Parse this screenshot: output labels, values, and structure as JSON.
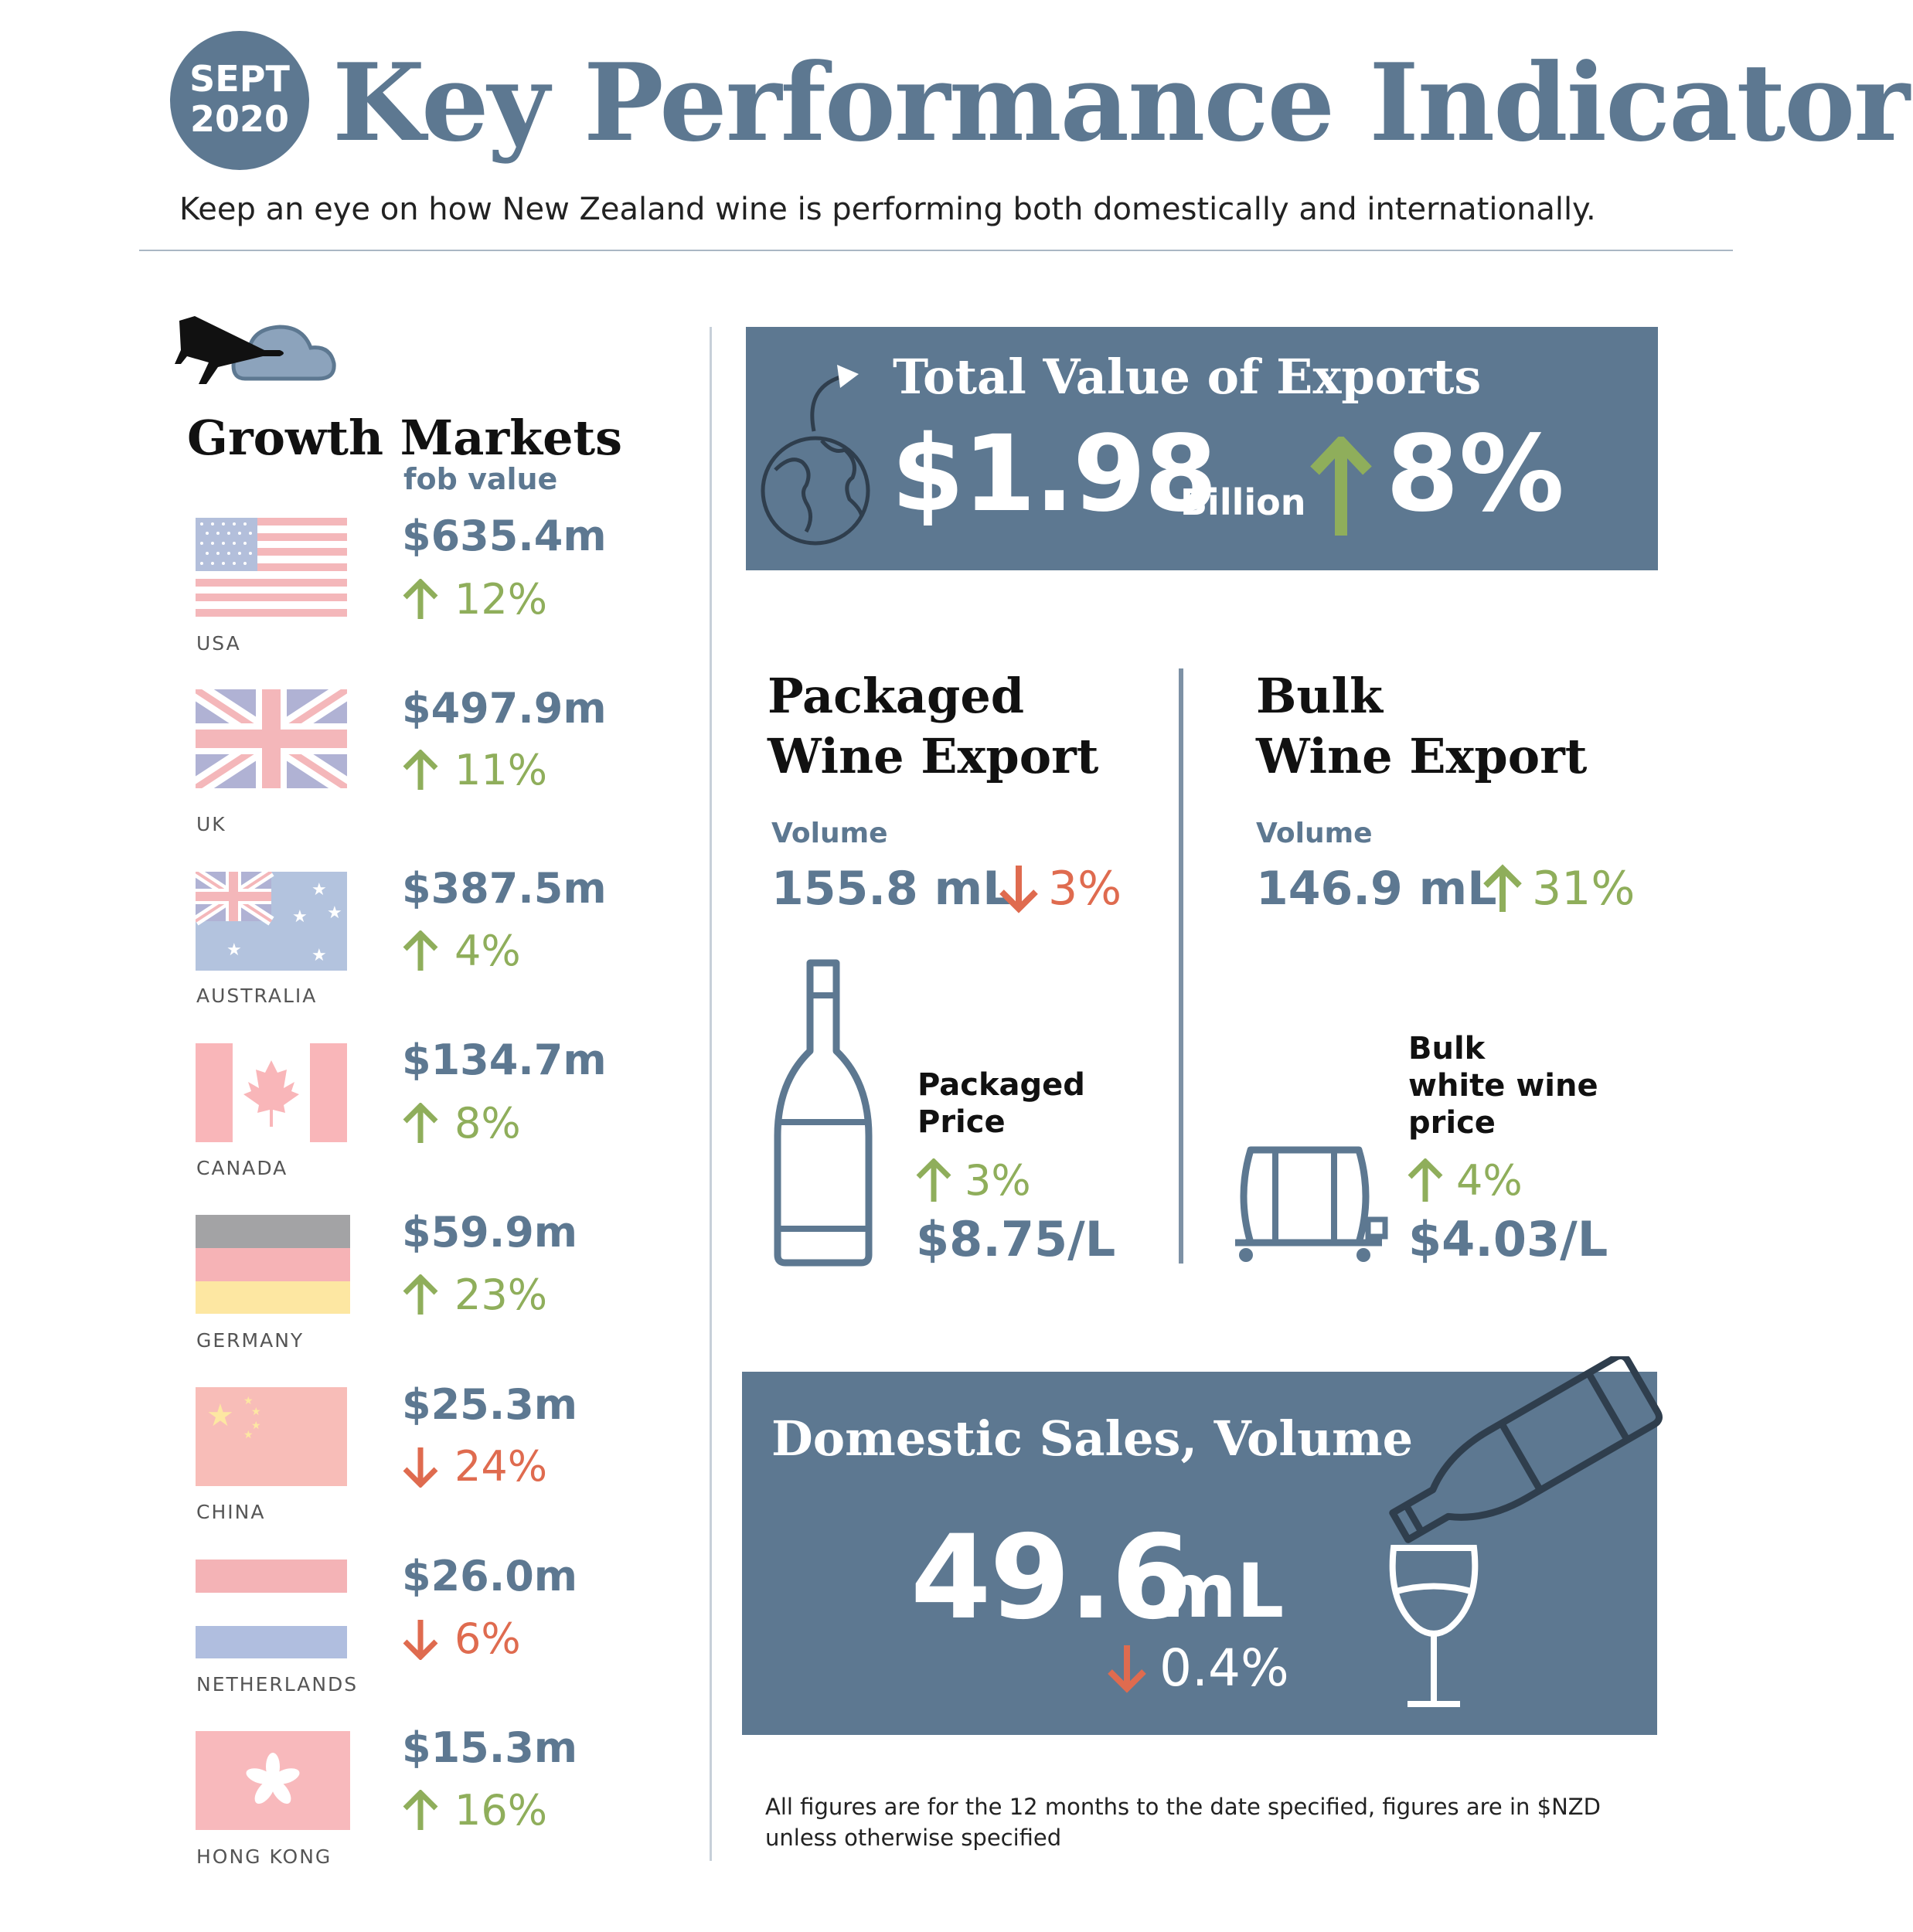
{
  "header": {
    "date_line1": "SEPT",
    "date_line2": "2020",
    "title": "Key Performance Indicators",
    "subtitle": "Keep an eye on how New Zealand wine is performing both domestically and internationally."
  },
  "growth_markets": {
    "title": "Growth Markets",
    "subtitle": "fob value",
    "markets": [
      {
        "country": "USA",
        "value": "$635.4m",
        "change": "12%",
        "direction": "up"
      },
      {
        "country": "UK",
        "value": "$497.9m",
        "change": "11%",
        "direction": "up"
      },
      {
        "country": "AUSTRALIA",
        "value": "$387.5m",
        "change": "4%",
        "direction": "up"
      },
      {
        "country": "CANADA",
        "value": "$134.7m",
        "change": "8%",
        "direction": "up"
      },
      {
        "country": "GERMANY",
        "value": "$59.9m",
        "change": "23%",
        "direction": "up"
      },
      {
        "country": "CHINA",
        "value": "$25.3m",
        "change": "24%",
        "direction": "down"
      },
      {
        "country": "NETHERLANDS",
        "value": "$26.0m",
        "change": "6%",
        "direction": "down"
      },
      {
        "country": "HONG KONG",
        "value": "$15.3m",
        "change": "16%",
        "direction": "up"
      }
    ]
  },
  "total_exports": {
    "title": "Total Value of Exports",
    "value": "$1.98",
    "unit": "Billion",
    "change": "8%",
    "direction": "up"
  },
  "packaged": {
    "title_line1": "Packaged",
    "title_line2": "Wine Export",
    "volume_label": "Volume",
    "volume": "155.8 mL",
    "volume_change": "3%",
    "volume_direction": "down",
    "price_label_line1": "Packaged",
    "price_label_line2": "Price",
    "price_change": "3%",
    "price_direction": "up",
    "price": "$8.75/L"
  },
  "bulk": {
    "title_line1": "Bulk",
    "title_line2": "Wine Export",
    "volume_label": "Volume",
    "volume": "146.9 mL",
    "volume_change": "31%",
    "volume_direction": "up",
    "price_label_line1": "Bulk",
    "price_label_line2": "white wine",
    "price_label_line3": "price",
    "price_change": "4%",
    "price_direction": "up",
    "price": "$4.03/L"
  },
  "domestic": {
    "title": "Domestic Sales, Volume",
    "value": "49.6",
    "unit": "mL",
    "change": "0.4%",
    "direction": "down"
  },
  "footnote": "All figures are for the 12 months to the date specified, figures are in $NZD unless otherwise specified",
  "colors": {
    "brand_blue": "#5d7891",
    "up_green": "#8fae5b",
    "down_red": "#df6b4f"
  },
  "icons": {
    "growth": "plane-cloud-icon",
    "exports": "globe-icon",
    "packaged": "wine-bottle-icon",
    "bulk": "wine-barrel-icon",
    "domestic": "pouring-bottle-glass-icon"
  }
}
